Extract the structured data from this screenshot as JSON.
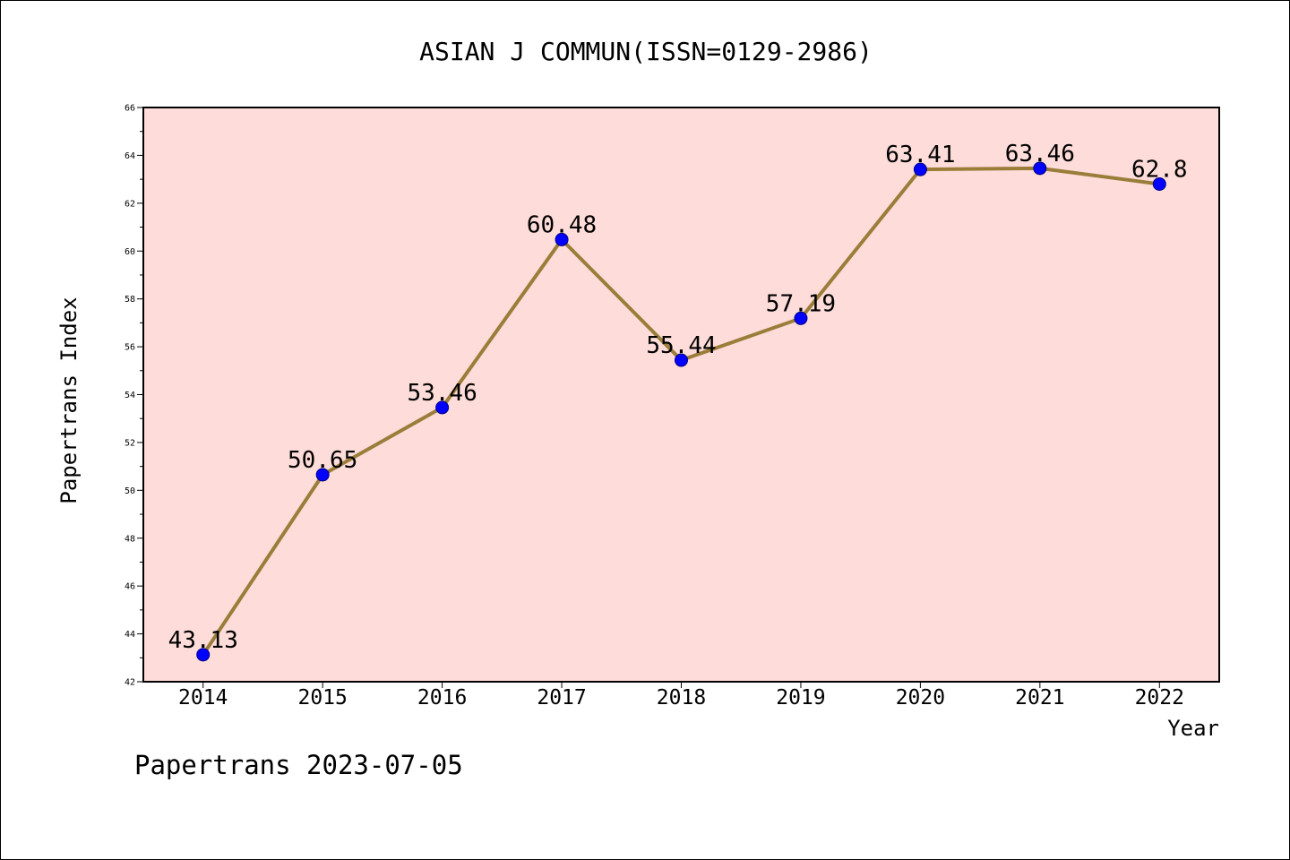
{
  "chart_data": {
    "type": "line",
    "title": "ASIAN J COMMUN(ISSN=0129-2986)",
    "xlabel": "Year",
    "ylabel": "Papertrans Index",
    "categories": [
      "2014",
      "2015",
      "2016",
      "2017",
      "2018",
      "2019",
      "2020",
      "2021",
      "2022"
    ],
    "series": [
      {
        "values": [
          43.13,
          50.65,
          53.46,
          60.48,
          55.44,
          57.19,
          63.41,
          63.46,
          62.8
        ],
        "labels": [
          "43.13",
          "50.65",
          "53.46",
          "60.48",
          "55.44",
          "57.19",
          "63.41",
          "63.46",
          "62.8"
        ],
        "line_color": "#9b7d3a",
        "marker_color": "#0000ff"
      }
    ],
    "ylim": [
      42,
      66
    ],
    "yticks": [
      "42",
      "44",
      "46",
      "48",
      "50",
      "52",
      "54",
      "56",
      "58",
      "60",
      "62",
      "64",
      "66"
    ],
    "grid": false,
    "plot_background": "#fddcd9",
    "footer": "Papertrans 2023-07-05"
  }
}
